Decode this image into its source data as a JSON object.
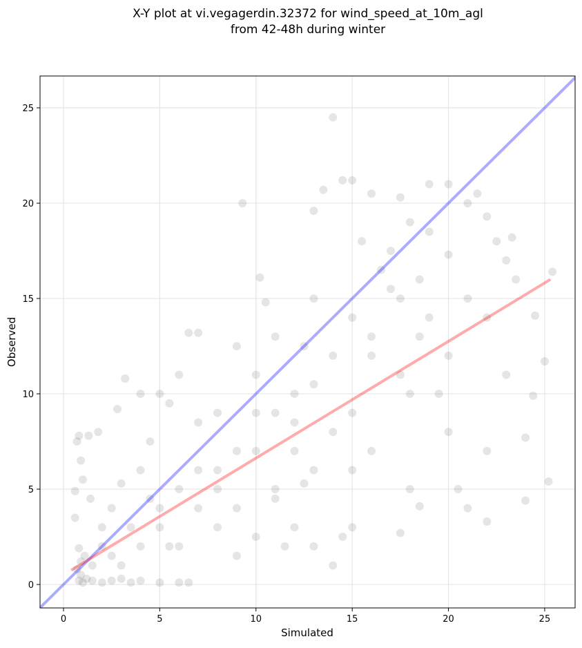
{
  "chart_data": {
    "type": "scatter",
    "title": [
      "X-Y plot at vi.vegagerdin.32372 for wind_speed_at_10m_agl",
      "from 42-48h during winter"
    ],
    "xlabel": "Simulated",
    "ylabel": "Observed",
    "xlim": [
      -1.22,
      26.58
    ],
    "ylim": [
      -1.23,
      26.67
    ],
    "xticks": [
      0,
      5,
      10,
      15,
      20,
      25
    ],
    "yticks": [
      0,
      5,
      10,
      15,
      20,
      25
    ],
    "grid": true,
    "color": "#000000",
    "alpha": 0.1,
    "x": [
      0.8,
      0.9,
      1.0,
      0.7,
      0.9,
      1.1,
      0.8,
      1.2,
      1.5,
      2.0,
      2.5,
      3.0,
      3.5,
      4.0,
      5.0,
      6.0,
      6.5,
      0.6,
      0.7,
      0.8,
      1.3,
      1.8,
      0.6,
      0.9,
      1.0,
      1.4,
      2.0,
      2.5,
      3.0,
      3.2,
      2.8,
      4.0,
      4.0,
      4.5,
      5,
      5.5,
      6,
      6.5,
      7,
      7,
      8,
      8,
      9,
      9.3,
      9,
      10,
      10,
      10.2,
      10.5,
      11,
      11,
      11,
      11.5,
      12,
      12,
      12.5,
      12.5,
      13,
      13,
      13.5,
      14,
      14.5,
      15,
      15,
      15,
      15,
      15,
      15.5,
      16,
      16,
      16,
      16.5,
      17,
      17.5,
      17.5,
      17.5,
      17.5,
      18,
      18,
      18,
      18.5,
      18.5,
      19,
      19,
      19,
      20,
      20,
      20,
      20,
      20.5,
      21,
      21,
      21,
      21.5,
      22,
      22,
      22,
      22,
      22.5,
      23,
      23,
      23.5,
      23.3,
      24,
      24,
      24.5,
      25,
      25.2,
      25.4,
      24.4,
      3,
      4,
      5,
      6,
      7,
      8,
      9,
      10,
      11,
      12,
      13,
      14,
      14.5,
      13,
      14,
      8,
      6,
      5,
      7,
      9,
      10,
      12,
      13,
      14,
      16,
      17,
      18.5,
      19.5,
      5.5,
      2,
      1.5,
      2.5,
      3.5,
      4.5
    ],
    "y": [
      0.2,
      0.5,
      0.1,
      0.8,
      1.2,
      1.5,
      1.9,
      0.3,
      0.2,
      0.1,
      0.2,
      0.3,
      0.1,
      0.2,
      0.1,
      0.1,
      0.1,
      3.5,
      7.5,
      7.8,
      7.8,
      8.0,
      4.9,
      6.5,
      5.5,
      4.5,
      3.0,
      4.0,
      5.3,
      10.8,
      9.2,
      10,
      6,
      7.5,
      10,
      9.5,
      11,
      13.2,
      13.2,
      8.5,
      9,
      6,
      12.5,
      20,
      4,
      7,
      11,
      16.1,
      14.8,
      13,
      9,
      5,
      2,
      10,
      7,
      5.3,
      12.5,
      15,
      19.6,
      20.7,
      24.5,
      21.2,
      21.2,
      14,
      9,
      6,
      3,
      18,
      20.5,
      12,
      7,
      16.5,
      17.5,
      20.3,
      15,
      11,
      2.7,
      19,
      10,
      5,
      4.1,
      16,
      18.5,
      14,
      21,
      21,
      17.3,
      12,
      8,
      5,
      20,
      15,
      4,
      20.5,
      19.3,
      14,
      7,
      3.3,
      18,
      17,
      11,
      16,
      18.2,
      4.4,
      7.7,
      14.1,
      11.7,
      5.4,
      16.4,
      9.9,
      1,
      2,
      3,
      2,
      4,
      3,
      1.5,
      2.5,
      4.5,
      3,
      2,
      1,
      2.5,
      6,
      8,
      5,
      5,
      4,
      6,
      7,
      9,
      8.5,
      10.5,
      12,
      13,
      15.5,
      13,
      10,
      2,
      2,
      1,
      1.5,
      3,
      4.5
    ],
    "lines": [
      {
        "color": "#0000ff",
        "x": [
          -1.5,
          27
        ],
        "y": [
          -1.5,
          27
        ]
      },
      {
        "color": "#ff0000",
        "x": [
          0.4,
          25.3
        ],
        "y": [
          0.75,
          16.0
        ]
      }
    ]
  }
}
